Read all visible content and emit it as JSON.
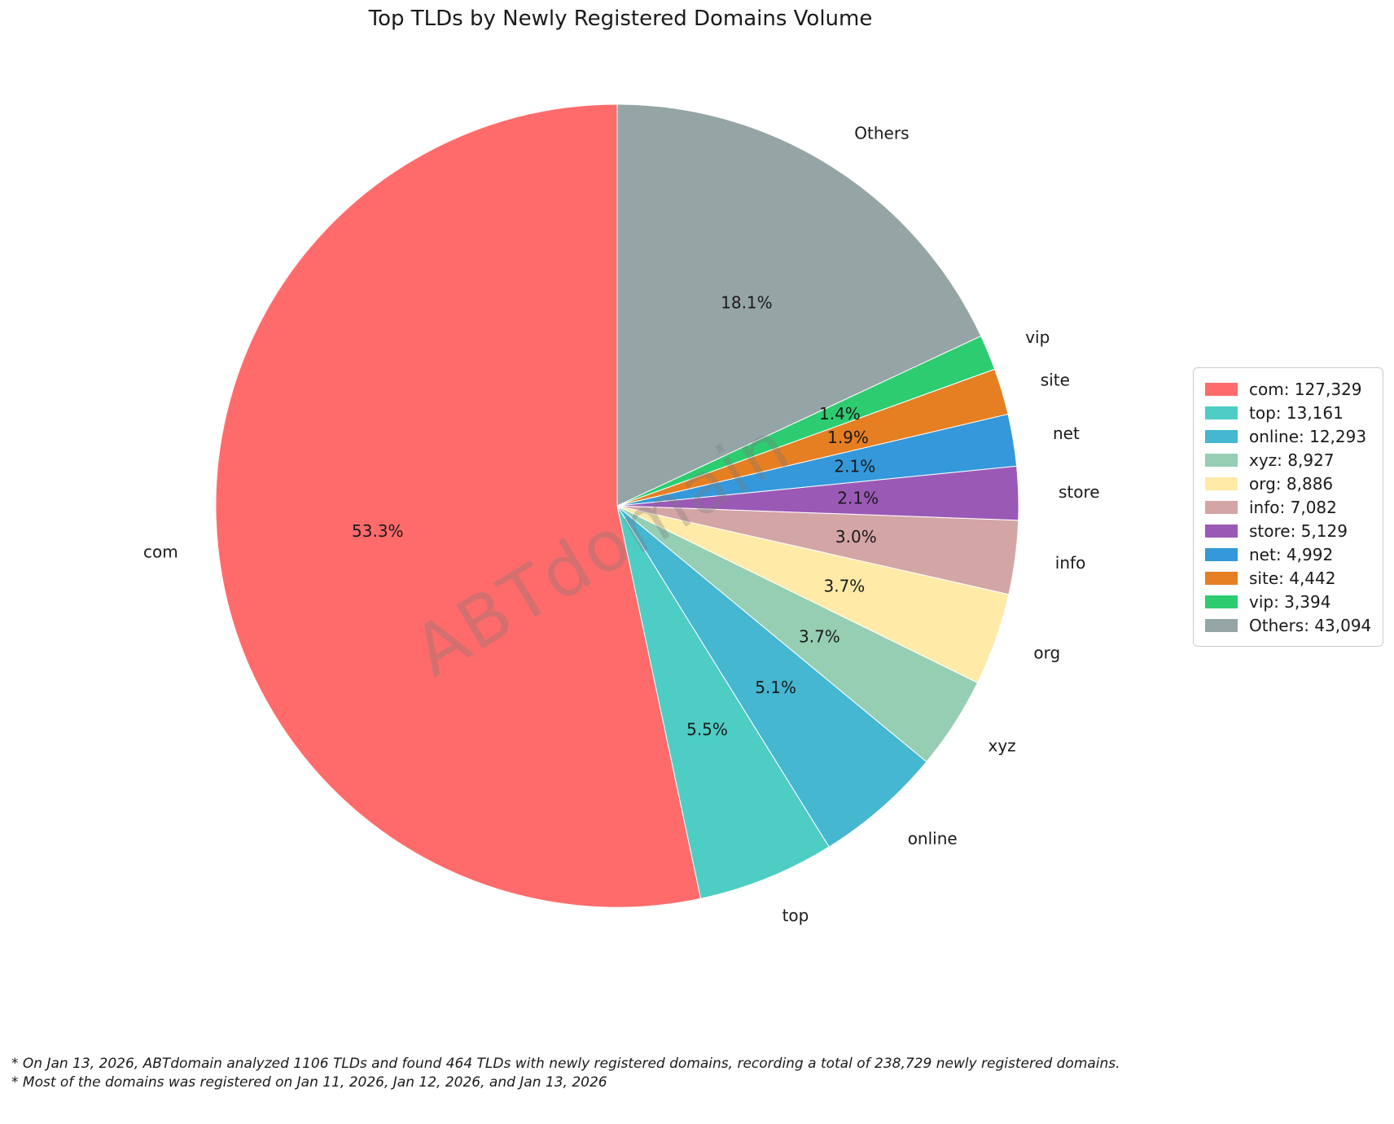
{
  "title": "Top TLDs by Newly Registered Domains Volume",
  "watermark": "ABTdomain",
  "footnotes": [
    "* On Jan 13, 2026, ABTdomain analyzed 1106 TLDs and found 464 TLDs with newly registered domains, recording a total of 238,729 newly registered domains.",
    "* Most of the domains was registered on Jan 11, 2026, Jan 12, 2026, and Jan 13, 2026"
  ],
  "chart_data": {
    "type": "pie",
    "title": "Top TLDs by Newly Registered Domains Volume",
    "start_angle_deg": 90,
    "counterclockwise": true,
    "grid": false,
    "legend_position": "right",
    "total": 238729,
    "labels": [
      "com",
      "top",
      "online",
      "xyz",
      "org",
      "info",
      "store",
      "net",
      "site",
      "vip",
      "Others"
    ],
    "values": [
      127329,
      13161,
      12293,
      8927,
      8886,
      7082,
      5129,
      4992,
      4442,
      3394,
      43094
    ],
    "percent_labels": [
      "53.3%",
      "5.5%",
      "5.1%",
      "3.7%",
      "3.7%",
      "3.0%",
      "2.1%",
      "2.1%",
      "1.9%",
      "1.4%",
      "18.1%"
    ],
    "colors": [
      "#ff6b6b",
      "#4ecdc4",
      "#45b7d1",
      "#96ceb4",
      "#ffeaa7",
      "#d4a5a5",
      "#9b59b6",
      "#3498db",
      "#e67e22",
      "#2ecc71",
      "#95a5a6"
    ],
    "legend_entries": [
      "com: 127,329",
      "top: 13,161",
      "online: 12,293",
      "xyz: 8,927",
      "org: 8,886",
      "info: 7,082",
      "store: 5,129",
      "net: 4,992",
      "site: 4,442",
      "vip: 3,394",
      "Others: 43,094"
    ]
  }
}
